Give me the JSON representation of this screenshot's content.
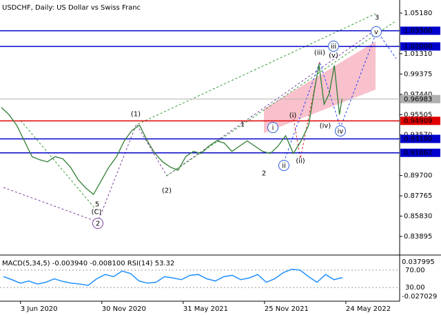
{
  "chart_data": {
    "type": "line",
    "title": "USDCHF, Daily:  US Dollar vs Swiss Franc",
    "x": [
      -30,
      -18,
      -6,
      6,
      18,
      30,
      42,
      54,
      66,
      78,
      90,
      102,
      114,
      126,
      138,
      150,
      162,
      174,
      186,
      198,
      210,
      222,
      234,
      246,
      258,
      270,
      282,
      294,
      306,
      318,
      330,
      342,
      354,
      366,
      378,
      390,
      402,
      414,
      426,
      438,
      450,
      458,
      466,
      474,
      482,
      490,
      498,
      502
    ],
    "series": [
      {
        "name": "USDCHF",
        "color": "#2e7d32",
        "values": [
          0.962,
          0.955,
          0.945,
          0.93,
          0.915,
          0.912,
          0.91,
          0.915,
          0.913,
          0.905,
          0.893,
          0.885,
          0.879,
          0.892,
          0.905,
          0.915,
          0.93,
          0.94,
          0.945,
          0.93,
          0.918,
          0.91,
          0.905,
          0.902,
          0.915,
          0.92,
          0.918,
          0.925,
          0.93,
          0.928,
          0.92,
          0.925,
          0.93,
          0.925,
          0.92,
          0.918,
          0.925,
          0.935,
          0.918,
          0.93,
          0.945,
          0.975,
          1.003,
          0.965,
          0.975,
          1.002,
          0.955,
          0.9698
        ]
      }
    ],
    "xlim": [
      -32,
      592
    ],
    "xticks": [
      {
        "value": 0,
        "label": "3 Jun 2020"
      },
      {
        "value": 127,
        "label": "30 Nov 2020"
      },
      {
        "value": 254,
        "label": "31 May 2021"
      },
      {
        "value": 381,
        "label": "25 Nov 2021"
      },
      {
        "value": 508,
        "label": "24 May 2022"
      }
    ],
    "ylim": [
      0.8212,
      1.061
    ],
    "yticks": [
      {
        "value": 1.0518,
        "label": "1.05180"
      },
      {
        "value": 1.0131,
        "label": "1.01310"
      },
      {
        "value": 0.99375,
        "label": "0.99375"
      },
      {
        "value": 0.9744,
        "label": "0.97440"
      },
      {
        "value": 0.95505,
        "label": "0.95505"
      },
      {
        "value": 0.9357,
        "label": "0.93570"
      },
      {
        "value": 0.897,
        "label": "0.89700"
      },
      {
        "value": 0.87765,
        "label": "0.87765"
      },
      {
        "value": 0.8583,
        "label": "0.85830"
      },
      {
        "value": 0.83895,
        "label": "0.83895"
      }
    ],
    "levels": [
      {
        "value": 1.035,
        "label": "1.03500",
        "color": "#0000cc"
      },
      {
        "value": 1.02,
        "label": "1.02000",
        "color": "#0000cc"
      },
      {
        "value": 0.94909,
        "label": "0.94909",
        "color": "#e00000"
      },
      {
        "value": 0.9319,
        "label": "0.93190",
        "color": "#0000cc"
      },
      {
        "value": 0.91862,
        "label": "0.91862",
        "color": "#0000cc"
      }
    ],
    "current": {
      "value": 0.96983,
      "label": "0.96983",
      "color": "#b0b0b0"
    },
    "annotations": [
      {
        "text": "(1)",
        "color": "#2e9a2e"
      },
      {
        "text": "(2)",
        "color": "#2e9a2e"
      },
      {
        "text": "(C)",
        "color": "#2e9a2e"
      },
      {
        "text": "5",
        "color": "#a0522d"
      },
      {
        "text": "2",
        "color": "#7b3fa0"
      },
      {
        "text": "1",
        "color": "#a0522d"
      },
      {
        "text": "2",
        "color": "#a0522d"
      },
      {
        "text": "i",
        "color": "#2a5bd7"
      },
      {
        "text": "ii",
        "color": "#2a5bd7"
      },
      {
        "text": "(i)",
        "color": "#e02020"
      },
      {
        "text": "(ii)",
        "color": "#e02020"
      },
      {
        "text": "(iii)",
        "color": "#e02020"
      },
      {
        "text": "(v)",
        "color": "#e02020"
      },
      {
        "text": "iii",
        "color": "#2a5bd7"
      },
      {
        "text": "(iv)",
        "color": "#e02020"
      },
      {
        "text": "iv",
        "color": "#2a5bd7"
      },
      {
        "text": "v",
        "color": "#2a5bd7"
      },
      {
        "text": "3",
        "color": "#a0522d"
      }
    ],
    "indicator": {
      "title": "MACD(5,34,5) -0.003940 -0.008100 RSI(14) 53.32",
      "ylim": [
        0,
        100
      ],
      "yticks": [
        {
          "value": 70,
          "label": "70.00"
        },
        {
          "value": 30,
          "label": "30.00"
        }
      ],
      "scale_labels": [
        "0.037995",
        "-0.027029"
      ],
      "rsi": {
        "color": "#1e90ff",
        "values": [
          55,
          48,
          40,
          45,
          38,
          42,
          50,
          44,
          40,
          38,
          35,
          50,
          60,
          55,
          68,
          62,
          45,
          40,
          42,
          55,
          52,
          48,
          58,
          60,
          50,
          45,
          55,
          58,
          48,
          52,
          60,
          42,
          50,
          64,
          72,
          70,
          55,
          42,
          60,
          48,
          53
        ]
      }
    }
  }
}
